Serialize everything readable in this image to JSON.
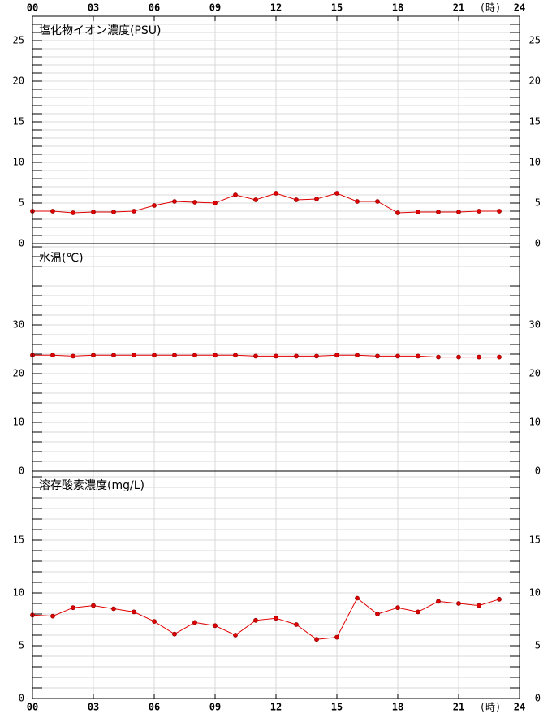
{
  "chart_data": [
    {
      "type": "line",
      "title": "塩化物イオン濃度(PSU)",
      "x_unit": "(時)",
      "xlim": [
        0,
        24
      ],
      "xticks": [
        {
          "value": 0,
          "label": "00"
        },
        {
          "value": 3,
          "label": "03"
        },
        {
          "value": 6,
          "label": "06"
        },
        {
          "value": 9,
          "label": "09"
        },
        12,
        15,
        18,
        21,
        24
      ],
      "ylim": [
        0,
        28
      ],
      "yticks": [
        0,
        5,
        10,
        15,
        20,
        25
      ],
      "minor_yticks": [
        1,
        2,
        3,
        4,
        6,
        7,
        8,
        9,
        11,
        12,
        13,
        14,
        16,
        17,
        18,
        19,
        21,
        22,
        23,
        24,
        26,
        27
      ],
      "grid": true,
      "series": [
        {
          "color": "#e00000",
          "x": [
            0,
            1,
            2,
            3,
            4,
            5,
            6,
            7,
            8,
            9,
            10,
            11,
            12,
            13,
            14,
            15,
            16,
            17,
            18,
            19,
            20,
            21,
            22,
            23
          ],
          "values": [
            4.0,
            4.0,
            3.8,
            3.9,
            3.9,
            4.0,
            4.7,
            5.2,
            5.1,
            5.0,
            6.0,
            5.4,
            6.2,
            5.4,
            5.5,
            6.2,
            5.2,
            5.2,
            3.8,
            3.9,
            3.9,
            3.9,
            4.0,
            4.0
          ]
        }
      ]
    },
    {
      "type": "line",
      "title": "水温(℃)",
      "ylim": [
        0,
        46.67
      ],
      "yticks": [
        0,
        10,
        20,
        30
      ],
      "minor_yticks": [
        2,
        4,
        6,
        8,
        12,
        14,
        16,
        18,
        22,
        24,
        26,
        28,
        32,
        34,
        36,
        38,
        42,
        44,
        46
      ],
      "grid": true,
      "series": [
        {
          "color": "#e00000",
          "x": [
            0,
            1,
            2,
            3,
            4,
            5,
            6,
            7,
            8,
            9,
            10,
            11,
            12,
            13,
            14,
            15,
            16,
            17,
            18,
            19,
            20,
            21,
            22,
            23
          ],
          "values": [
            23.8,
            23.8,
            23.6,
            23.8,
            23.8,
            23.8,
            23.8,
            23.8,
            23.8,
            23.8,
            23.8,
            23.6,
            23.6,
            23.6,
            23.6,
            23.8,
            23.8,
            23.6,
            23.6,
            23.6,
            23.4,
            23.4,
            23.4,
            23.4
          ]
        }
      ]
    },
    {
      "type": "line",
      "title": "溶存酸素濃度(mg/L)",
      "x_unit": "(時)",
      "xlim": [
        0,
        24
      ],
      "xticks": [
        {
          "value": 0,
          "label": "00"
        },
        {
          "value": 3,
          "label": "03"
        },
        {
          "value": 6,
          "label": "06"
        },
        {
          "value": 9,
          "label": "09"
        },
        12,
        15,
        18,
        21,
        24
      ],
      "ylim": [
        0,
        21.54
      ],
      "yticks": [
        0,
        5,
        10,
        15
      ],
      "minor_yticks": [
        1,
        2,
        3,
        4,
        6,
        7,
        8,
        9,
        11,
        12,
        13,
        14,
        16,
        17,
        18,
        19,
        20,
        21
      ],
      "grid": true,
      "series": [
        {
          "color": "#e00000",
          "x": [
            0,
            1,
            2,
            3,
            4,
            5,
            6,
            7,
            8,
            9,
            10,
            11,
            12,
            13,
            14,
            15,
            16,
            17,
            18,
            19,
            20,
            21,
            22,
            23
          ],
          "values": [
            7.9,
            7.8,
            8.6,
            8.8,
            8.5,
            8.2,
            7.3,
            6.1,
            7.2,
            6.9,
            6.0,
            7.4,
            7.6,
            7.0,
            5.6,
            5.8,
            9.5,
            8.0,
            8.6,
            8.2,
            9.2,
            9.0,
            8.8,
            9.4
          ]
        }
      ]
    }
  ]
}
